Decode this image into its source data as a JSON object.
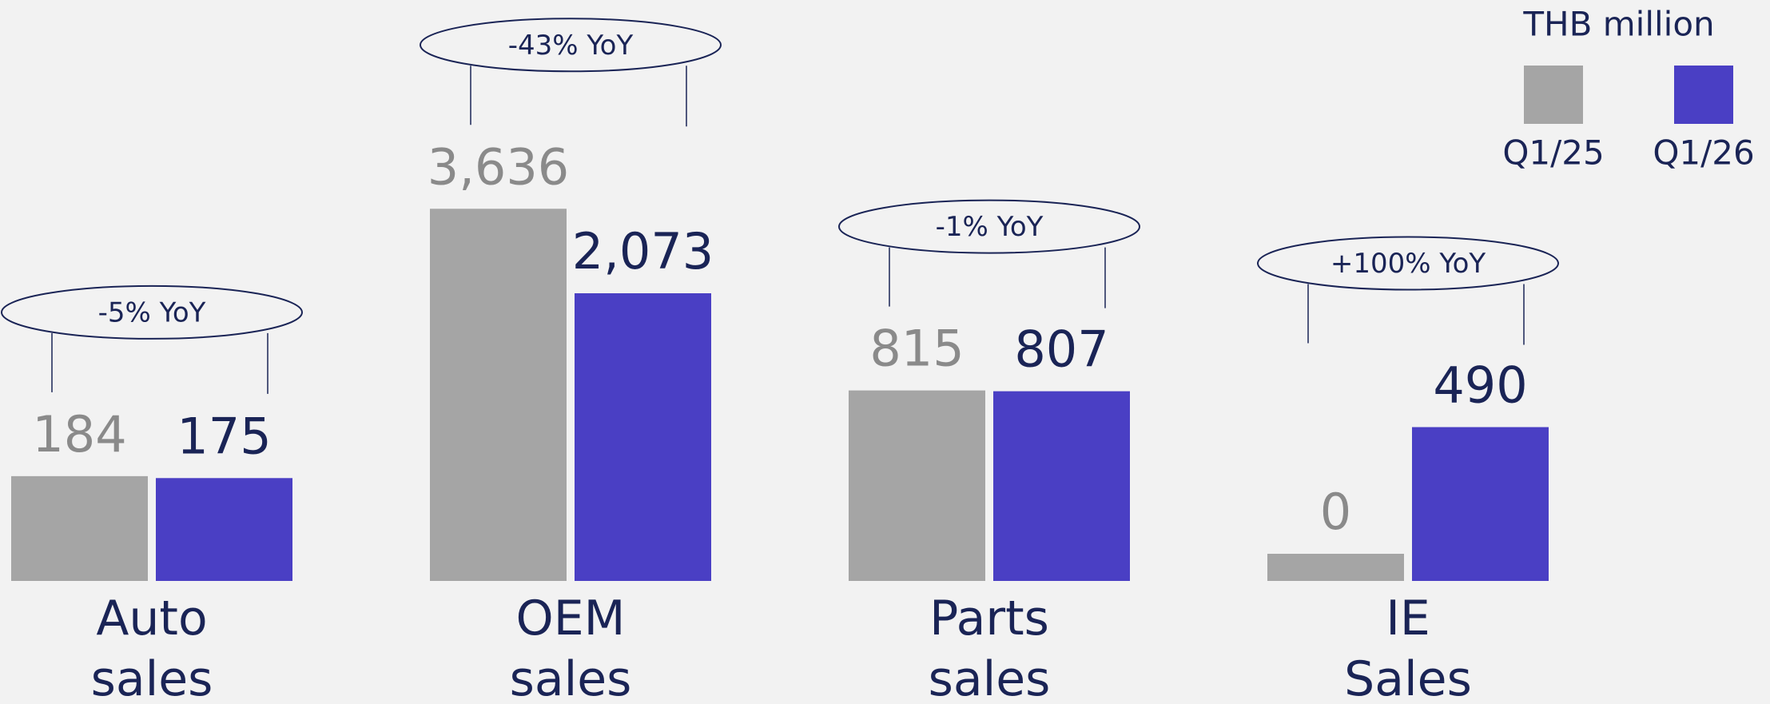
{
  "chart_data": {
    "type": "bar",
    "unit": "THB million",
    "categories": [
      "Auto sales",
      "OEM sales",
      "Parts sales",
      "IE Sales"
    ],
    "series": [
      {
        "name": "Q1/25",
        "color": "#a5a5a5",
        "values": [
          184,
          3636,
          815,
          0
        ],
        "value_labels": [
          "184",
          "3,636",
          "815",
          "0"
        ]
      },
      {
        "name": "Q1/26",
        "color": "#4a3fc4",
        "values": [
          175,
          2073,
          807,
          490
        ],
        "value_labels": [
          "175",
          "2,073",
          "807",
          "490"
        ]
      }
    ],
    "annotations": [
      "-5% YoY",
      "-43% YoY",
      "-1% YoY",
      "+100% YoY"
    ]
  }
}
